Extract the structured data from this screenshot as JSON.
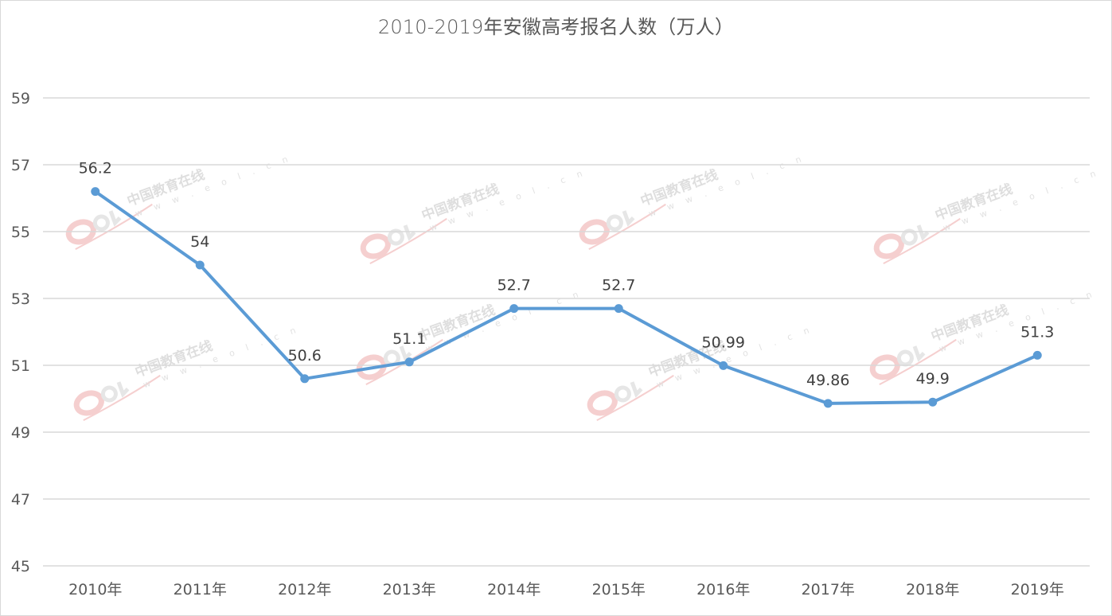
{
  "chart_data": {
    "type": "line",
    "title": "2010-2019年安徽高考报名人数（万人）",
    "categories": [
      "2010年",
      "2011年",
      "2012年",
      "2013年",
      "2014年",
      "2015年",
      "2016年",
      "2017年",
      "2018年",
      "2019年"
    ],
    "series": [
      {
        "name": "安徽高考报名人数（万人）",
        "values": [
          56.2,
          54,
          50.6,
          51.1,
          52.7,
          52.7,
          50.99,
          49.86,
          49.9,
          51.3
        ],
        "labels": [
          "56.2",
          "54",
          "50.6",
          "51.1",
          "52.7",
          "52.7",
          "50.99",
          "49.86",
          "49.9",
          "51.3"
        ],
        "color": "#5b9bd5"
      }
    ],
    "xlabel": "",
    "ylabel": "",
    "ylim": [
      45,
      59
    ],
    "yticks": [
      "59",
      "57",
      "55",
      "53",
      "51",
      "49",
      "47",
      "45"
    ],
    "grid": true,
    "legend": "none",
    "data_labels": true
  },
  "watermark": {
    "brand": "eol",
    "name": "中国教育在线",
    "url": "w w w . e o l . c n"
  },
  "colors": {
    "line": "#5b9bd5",
    "grid": "#d9d9d9",
    "text": "#595959",
    "watermark_red": "#f4c7c7"
  }
}
